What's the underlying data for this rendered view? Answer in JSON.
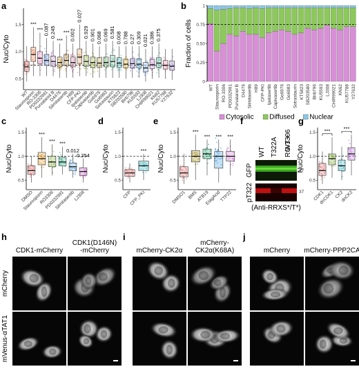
{
  "panel_labels": {
    "a": "a",
    "b": "b",
    "c": "c",
    "d": "d",
    "e": "e",
    "f": "f",
    "g": "g",
    "h": "h",
    "i": "i",
    "j": "j"
  },
  "chart_data": [
    {
      "panel": "a",
      "type": "box",
      "ylabel": "Nuc/Cyto",
      "ylim": [
        0.3,
        1.8
      ],
      "yticks": [
        "0.5",
        "1.0",
        "1.5"
      ],
      "ytick_values": [
        0.5,
        1.0,
        1.5
      ],
      "reference_line": 0.75,
      "categories": [
        "WT",
        "Staurosporin",
        "RO-3306",
        "PD0332991",
        "Purvalanol B",
        "D4476",
        "Silmitasertib",
        "H89",
        "CFP-PKI",
        "Ipatasertib",
        "Capivasertib",
        "Go6976",
        "Go6983",
        "Sotrastaurin",
        "KT5823",
        "SB203580",
        "Birb796",
        "KU5593",
        "LJ308",
        "CHIR99021",
        "KN62",
        "KU57788",
        "Y27632"
      ],
      "medians": [
        0.72,
        0.95,
        0.88,
        0.84,
        0.82,
        0.8,
        0.84,
        0.8,
        0.9,
        0.82,
        0.8,
        0.79,
        0.8,
        0.82,
        0.79,
        0.77,
        0.78,
        0.77,
        0.7,
        0.76,
        0.79,
        0.75,
        0.73
      ],
      "q1": [
        0.64,
        0.82,
        0.78,
        0.75,
        0.73,
        0.72,
        0.74,
        0.72,
        0.78,
        0.73,
        0.71,
        0.71,
        0.72,
        0.72,
        0.71,
        0.7,
        0.7,
        0.7,
        0.63,
        0.69,
        0.71,
        0.68,
        0.66
      ],
      "q3": [
        0.82,
        1.08,
        1.0,
        0.95,
        0.92,
        0.9,
        0.95,
        0.9,
        1.05,
        0.93,
        0.9,
        0.89,
        0.9,
        0.93,
        0.89,
        0.86,
        0.87,
        0.87,
        0.8,
        0.86,
        0.89,
        0.84,
        0.83
      ],
      "whisker_low": [
        0.45,
        0.55,
        0.55,
        0.55,
        0.55,
        0.52,
        0.52,
        0.52,
        0.55,
        0.55,
        0.52,
        0.52,
        0.52,
        0.52,
        0.52,
        0.5,
        0.52,
        0.52,
        0.45,
        0.5,
        0.52,
        0.5,
        0.48
      ],
      "whisker_high": [
        1.1,
        1.45,
        1.35,
        1.25,
        1.2,
        1.15,
        1.3,
        1.15,
        1.5,
        1.2,
        1.15,
        1.1,
        1.15,
        1.2,
        1.1,
        1.1,
        1.1,
        1.1,
        1.05,
        1.1,
        1.15,
        1.05,
        1.05
      ],
      "significance": [
        "",
        "***",
        "***",
        "0.087",
        "0.245",
        "***",
        "***",
        "0.002",
        "0.027",
        "0.929",
        "0.901",
        "0.068",
        "0.069",
        "0.581",
        "0.008",
        "0.788",
        "0.27",
        "0.309",
        "0.021",
        "0.386",
        "0.375",
        "",
        ""
      ],
      "colors": [
        "#e58a8a",
        "#f4a07c",
        "#e8a0c8",
        "#8fa8e0",
        "#c8a0d0",
        "#d4b060",
        "#c0a070",
        "#d890b0",
        "#e0b080",
        "#a8c070",
        "#b0c060",
        "#c8c080",
        "#90c090",
        "#80c8a8",
        "#70c0c0",
        "#e0c070",
        "#b0a0e0",
        "#70b8d8",
        "#a0c0e8",
        "#d0a0d8",
        "#80c8b8",
        "#e8a8b8",
        "#c0b0e0"
      ]
    },
    {
      "panel": "b",
      "type": "stacked_bar",
      "ylabel": "Fraction of cells",
      "ylim": [
        0,
        1
      ],
      "yticks": [
        "0",
        "0.25",
        "0.50",
        "0.75",
        "1"
      ],
      "ytick_values": [
        0,
        0.25,
        0.5,
        0.75,
        1
      ],
      "reference_line": 0.75,
      "categories": [
        "WT",
        "Staurosporin",
        "RO-3306",
        "PD0332991",
        "Purvalanol B",
        "D4476",
        "Silmitasertib",
        "H89",
        "CFP-PKI",
        "Ipatasertib",
        "Capivasertib",
        "Go6976",
        "Go6983",
        "Sotrastaurin",
        "KT5823",
        "SB203580",
        "Birb796",
        "KU5593",
        "LJ308",
        "CHIR99021",
        "KN62",
        "KU57788",
        "Y27632"
      ],
      "series": [
        {
          "name": "Cytosolic",
          "color": "#d98fd8",
          "values": [
            0.76,
            0.4,
            0.5,
            0.62,
            0.6,
            0.66,
            0.62,
            0.62,
            0.58,
            0.64,
            0.66,
            0.68,
            0.66,
            0.62,
            0.64,
            0.7,
            0.68,
            0.7,
            0.74,
            0.7,
            0.68,
            0.72,
            0.72
          ]
        },
        {
          "name": "Diffused",
          "color": "#8cc95a",
          "values": [
            0.2,
            0.54,
            0.45,
            0.34,
            0.37,
            0.31,
            0.34,
            0.35,
            0.38,
            0.33,
            0.31,
            0.29,
            0.31,
            0.35,
            0.33,
            0.27,
            0.29,
            0.27,
            0.23,
            0.27,
            0.29,
            0.25,
            0.25
          ]
        },
        {
          "name": "Nuclear",
          "color": "#8ac6e8",
          "values": [
            0.04,
            0.06,
            0.05,
            0.04,
            0.03,
            0.03,
            0.04,
            0.03,
            0.04,
            0.03,
            0.03,
            0.03,
            0.03,
            0.03,
            0.03,
            0.03,
            0.03,
            0.03,
            0.03,
            0.03,
            0.03,
            0.03,
            0.03
          ]
        }
      ]
    },
    {
      "panel": "c",
      "type": "box",
      "ylabel": "Nuc/Cyto",
      "ylim": [
        0.3,
        1.6
      ],
      "yticks": [
        "0.5",
        "1.0",
        "1.5"
      ],
      "ytick_values": [
        0.5,
        1.0,
        1.5
      ],
      "reference_line": 1.0,
      "categories": [
        "DMSO",
        "Staurosporin",
        "RO3306",
        "PD0332991",
        "Silmitasertib",
        "LJ308"
      ],
      "medians": [
        0.7,
        0.95,
        0.88,
        0.88,
        0.78,
        0.68
      ],
      "q1": [
        0.62,
        0.82,
        0.78,
        0.8,
        0.7,
        0.6
      ],
      "q3": [
        0.8,
        1.08,
        1.0,
        0.98,
        0.86,
        0.76
      ],
      "whisker_low": [
        0.45,
        0.55,
        0.6,
        0.62,
        0.55,
        0.45
      ],
      "whisker_high": [
        1.0,
        1.4,
        1.25,
        1.2,
        1.05,
        0.95
      ],
      "significance": [
        "",
        "***",
        "***",
        "***",
        "0.012",
        "0.254"
      ],
      "colors": [
        "#e58a8a",
        "#e8b050",
        "#9bc060",
        "#58c0a0",
        "#70b0e0",
        "#d890d8"
      ]
    },
    {
      "panel": "d",
      "type": "box",
      "ylabel": "Nuc/Cyto",
      "ylim": [
        0.3,
        1.6
      ],
      "yticks": [
        "0.5",
        "1.0",
        "1.5"
      ],
      "ytick_values": [
        0.5,
        1.0,
        1.5
      ],
      "reference_line": 1.0,
      "categories": [
        "CFP",
        "CFP_PKI"
      ],
      "medians": [
        0.65,
        0.8
      ],
      "q1": [
        0.58,
        0.7
      ],
      "q3": [
        0.72,
        0.9
      ],
      "whisker_low": [
        0.45,
        0.5
      ],
      "whisker_high": [
        0.85,
        1.05
      ],
      "significance": [
        "",
        "***"
      ],
      "colors": [
        "#e58a8a",
        "#58c0c8"
      ]
    },
    {
      "panel": "e",
      "type": "box",
      "ylabel": "Nuc/Cyto",
      "ylim": [
        0.3,
        1.6
      ],
      "yticks": [
        "0.5",
        "1.0",
        "1.5"
      ],
      "ytick_values": [
        0.5,
        1.0,
        1.5
      ],
      "reference_line": 1.0,
      "categories": [
        "DMSO1",
        "BMS",
        "ATB19",
        "EtagAcid",
        "TTP22"
      ],
      "medians": [
        0.65,
        1.0,
        1.05,
        1.0,
        1.0
      ],
      "q1": [
        0.57,
        0.88,
        0.95,
        0.75,
        0.9
      ],
      "q3": [
        0.78,
        1.12,
        1.15,
        1.1,
        1.1
      ],
      "whisker_low": [
        0.42,
        0.5,
        0.6,
        0.45,
        0.6
      ],
      "whisker_high": [
        1.05,
        1.45,
        1.35,
        1.35,
        1.35
      ],
      "significance": [
        "",
        "***",
        "***",
        "***",
        "***"
      ],
      "colors": [
        "#e58a8a",
        "#b0a040",
        "#40b080",
        "#58a8e0",
        "#d890d8"
      ]
    },
    {
      "panel": "g",
      "type": "box",
      "ylabel": "Nuc/Cyto",
      "ylim": [
        0.3,
        1.6
      ],
      "yticks": [
        "0.5",
        "1.0",
        "1.5"
      ],
      "ytick_values": [
        0.5,
        1.0,
        1.5
      ],
      "reference_line": 1.0,
      "categories": [
        "CDK1",
        "dnCDK1",
        "CK2",
        "dnCK2"
      ],
      "medians": [
        0.7,
        0.95,
        0.8,
        1.05
      ],
      "q1": [
        0.6,
        0.82,
        0.7,
        0.92
      ],
      "q3": [
        0.85,
        1.05,
        0.92,
        1.18
      ],
      "whisker_low": [
        0.42,
        0.55,
        0.5,
        0.6
      ],
      "whisker_high": [
        1.1,
        1.4,
        1.2,
        1.45
      ],
      "significance": [
        "",
        "",
        "",
        ""
      ],
      "brackets": [
        {
          "from": 0,
          "to": 1,
          "label": "***"
        },
        {
          "from": 2,
          "to": 3,
          "label": "***"
        }
      ],
      "colors": [
        "#e58a8a",
        "#9bc060",
        "#58c0c8",
        "#c890e0"
      ]
    }
  ],
  "blot": {
    "lanes": [
      "WT",
      "T322A",
      "WT +\nRO-3306"
    ],
    "lane_lines": [
      [
        "WT"
      ],
      [
        "T322A"
      ],
      [
        "WT +",
        "RO-3306"
      ]
    ],
    "row_labels": [
      "GFP",
      "pT322"
    ],
    "marker": "37",
    "antibody_note": "(Anti-RRXS*/T*)"
  },
  "micrographs": {
    "h": {
      "columns": [
        "CDK1-mCherry",
        "CDK1(D146N)\n-mCherry"
      ],
      "column_lines": [
        [
          "CDK1-mCherry"
        ],
        [
          "CDK1(D146N)",
          "-mCherry"
        ]
      ],
      "rows": [
        "mCherry",
        "mVenus-αTAT1"
      ]
    },
    "i": {
      "columns": [
        "mCherry-CK2α",
        "mCherry-\nCK2α(K68A)"
      ],
      "column_lines": [
        [
          "mCherry-CK2α"
        ],
        [
          "mCherry-",
          "CK2α(K68A)"
        ]
      ]
    },
    "j": {
      "columns": [
        "mCherry",
        "mCherry-PPP2CA"
      ],
      "column_lines": [
        [
          "mCherry"
        ],
        [
          "mCherry-PPP2CA"
        ]
      ]
    }
  },
  "legend_b": [
    "Cytosolic",
    "Diffused",
    "Nuclear"
  ]
}
